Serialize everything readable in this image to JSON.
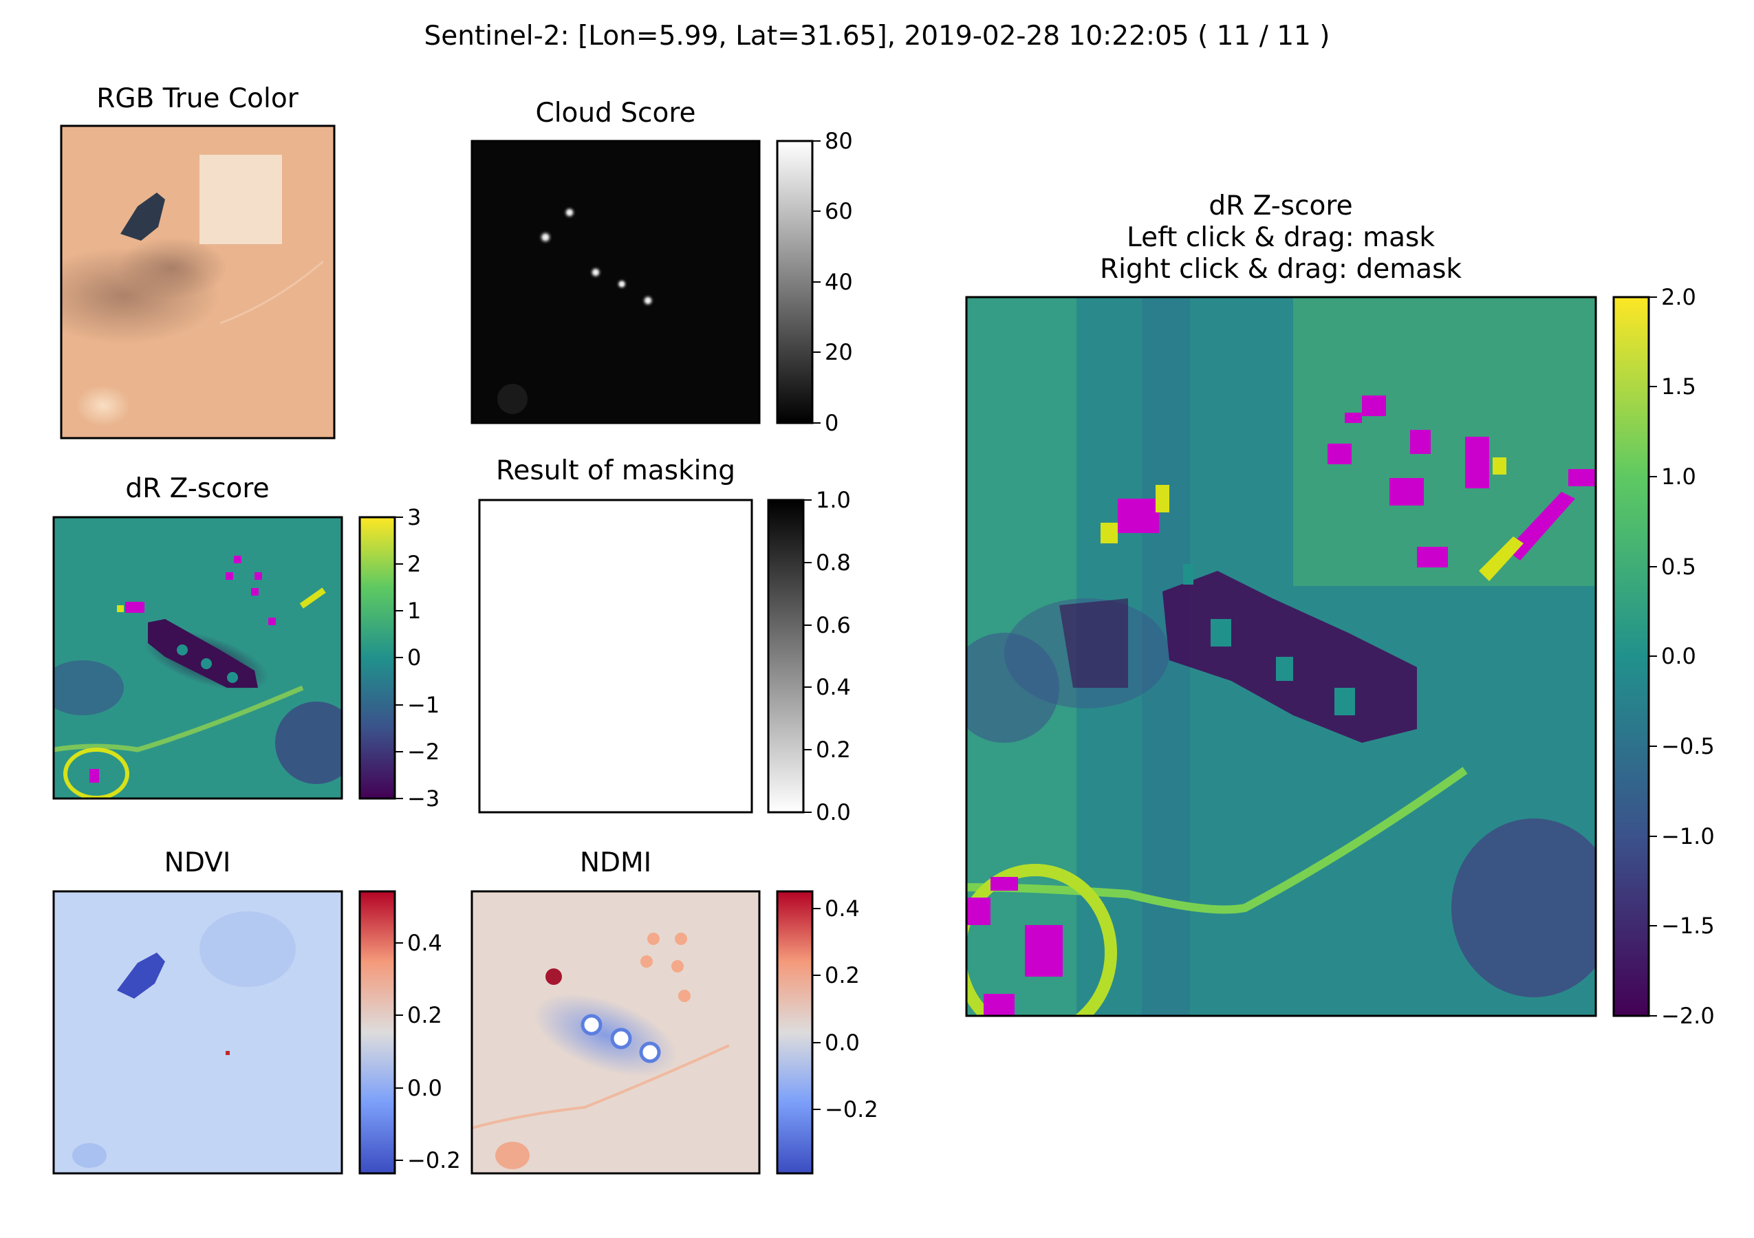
{
  "figure": {
    "suptitle": "Sentinel-2: [Lon=5.99, Lat=31.65], 2019-02-28 10:22:05 ( 11 / 11 )"
  },
  "panels": {
    "rgb": {
      "title": "RGB True Color"
    },
    "cloud": {
      "title": "Cloud Score",
      "cmap": "gray",
      "ticks": [
        "80",
        "60",
        "40",
        "20",
        "0"
      ]
    },
    "dr_small": {
      "title": "dR Z-score",
      "cmap": "viridis",
      "ticks": [
        "3",
        "2",
        "1",
        "0",
        "−1",
        "−2",
        "−3"
      ]
    },
    "mask": {
      "title": "Result of masking",
      "cmap": "gray_r",
      "ticks": [
        "1.0",
        "0.8",
        "0.6",
        "0.4",
        "0.2",
        "0.0"
      ]
    },
    "ndvi": {
      "title": "NDVI",
      "cmap": "coolwarm",
      "ticks": [
        "0.4",
        "0.2",
        "0.0",
        "−0.2"
      ]
    },
    "ndmi": {
      "title": "NDMI",
      "cmap": "coolwarm",
      "ticks": [
        "0.4",
        "0.2",
        "0.0",
        "−0.2"
      ]
    },
    "dr_main": {
      "title_line1": "dR Z-score",
      "title_line2": "Left click & drag: mask",
      "title_line3": "Right click & drag: demask",
      "cmap": "viridis",
      "ticks": [
        "2.0",
        "1.5",
        "1.0",
        "0.5",
        "0.0",
        "−0.5",
        "−1.0",
        "−1.5",
        "−2.0"
      ]
    }
  },
  "colors": {
    "masked_pixel": "#cc00cc",
    "viridis": [
      "#440154",
      "#3b528b",
      "#21918c",
      "#5ec962",
      "#fde725"
    ],
    "coolwarm": [
      "#3b4cc0",
      "#aac7fd",
      "#dddcdc",
      "#f7a889",
      "#b40426"
    ],
    "desert": "#e9b48e"
  }
}
